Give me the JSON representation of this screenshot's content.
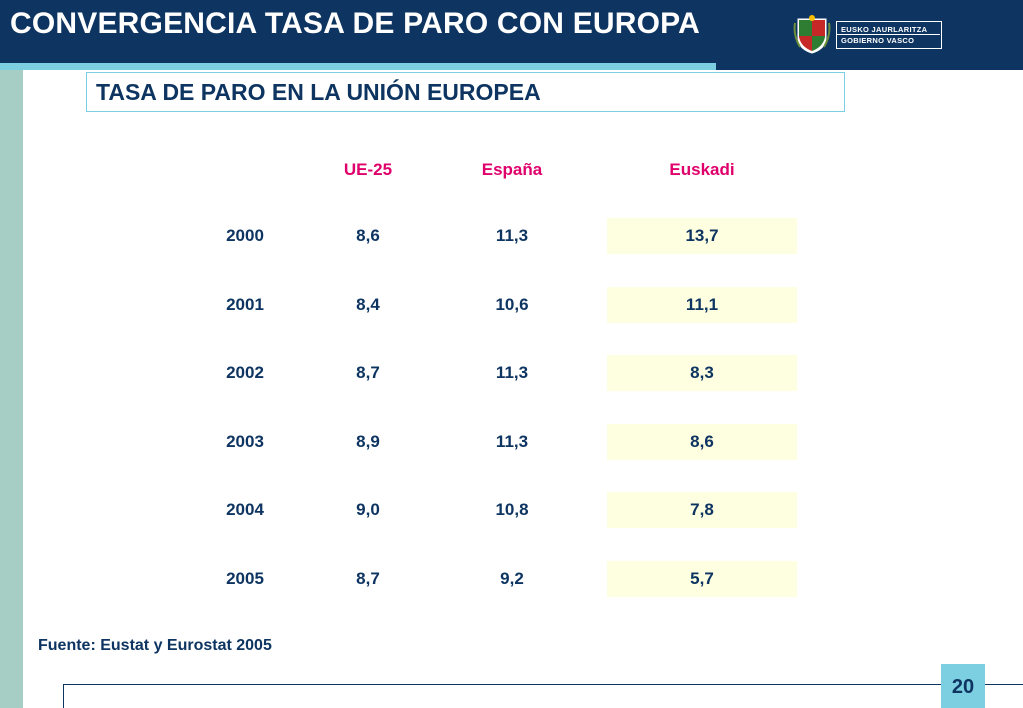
{
  "header": {
    "title": "CONVERGENCIA TASA DE PARO CON EUROPA"
  },
  "logo": {
    "line1": "EUSKO JAURLARITZA",
    "line2": "GOBIERNO VASCO"
  },
  "subtitle": "TASA DE PARO EN LA UNIÓN EUROPEA",
  "table": {
    "columns": [
      "UE-25",
      "España",
      "Euskadi"
    ],
    "rows": [
      {
        "year": "2000",
        "ue25": "8,6",
        "espana": "11,3",
        "euskadi": "13,7"
      },
      {
        "year": "2001",
        "ue25": "8,4",
        "espana": "10,6",
        "euskadi": "11,1"
      },
      {
        "year": "2002",
        "ue25": "8,7",
        "espana": "11,3",
        "euskadi": "8,3"
      },
      {
        "year": "2003",
        "ue25": "8,9",
        "espana": "11,3",
        "euskadi": "8,6"
      },
      {
        "year": "2004",
        "ue25": "9,0",
        "espana": "10,8",
        "euskadi": "7,8"
      },
      {
        "year": "2005",
        "ue25": "8,7",
        "espana": "9,2",
        "euskadi": "5,7"
      }
    ]
  },
  "source": "Fuente: Eustat y Eurostat 2005",
  "page_number": "20",
  "colors": {
    "navy": "#0e3561",
    "light_blue": "#7ccfe0",
    "sage": "#a6cec4",
    "header_accent": "#e0006b",
    "highlight": "#fefee0"
  }
}
